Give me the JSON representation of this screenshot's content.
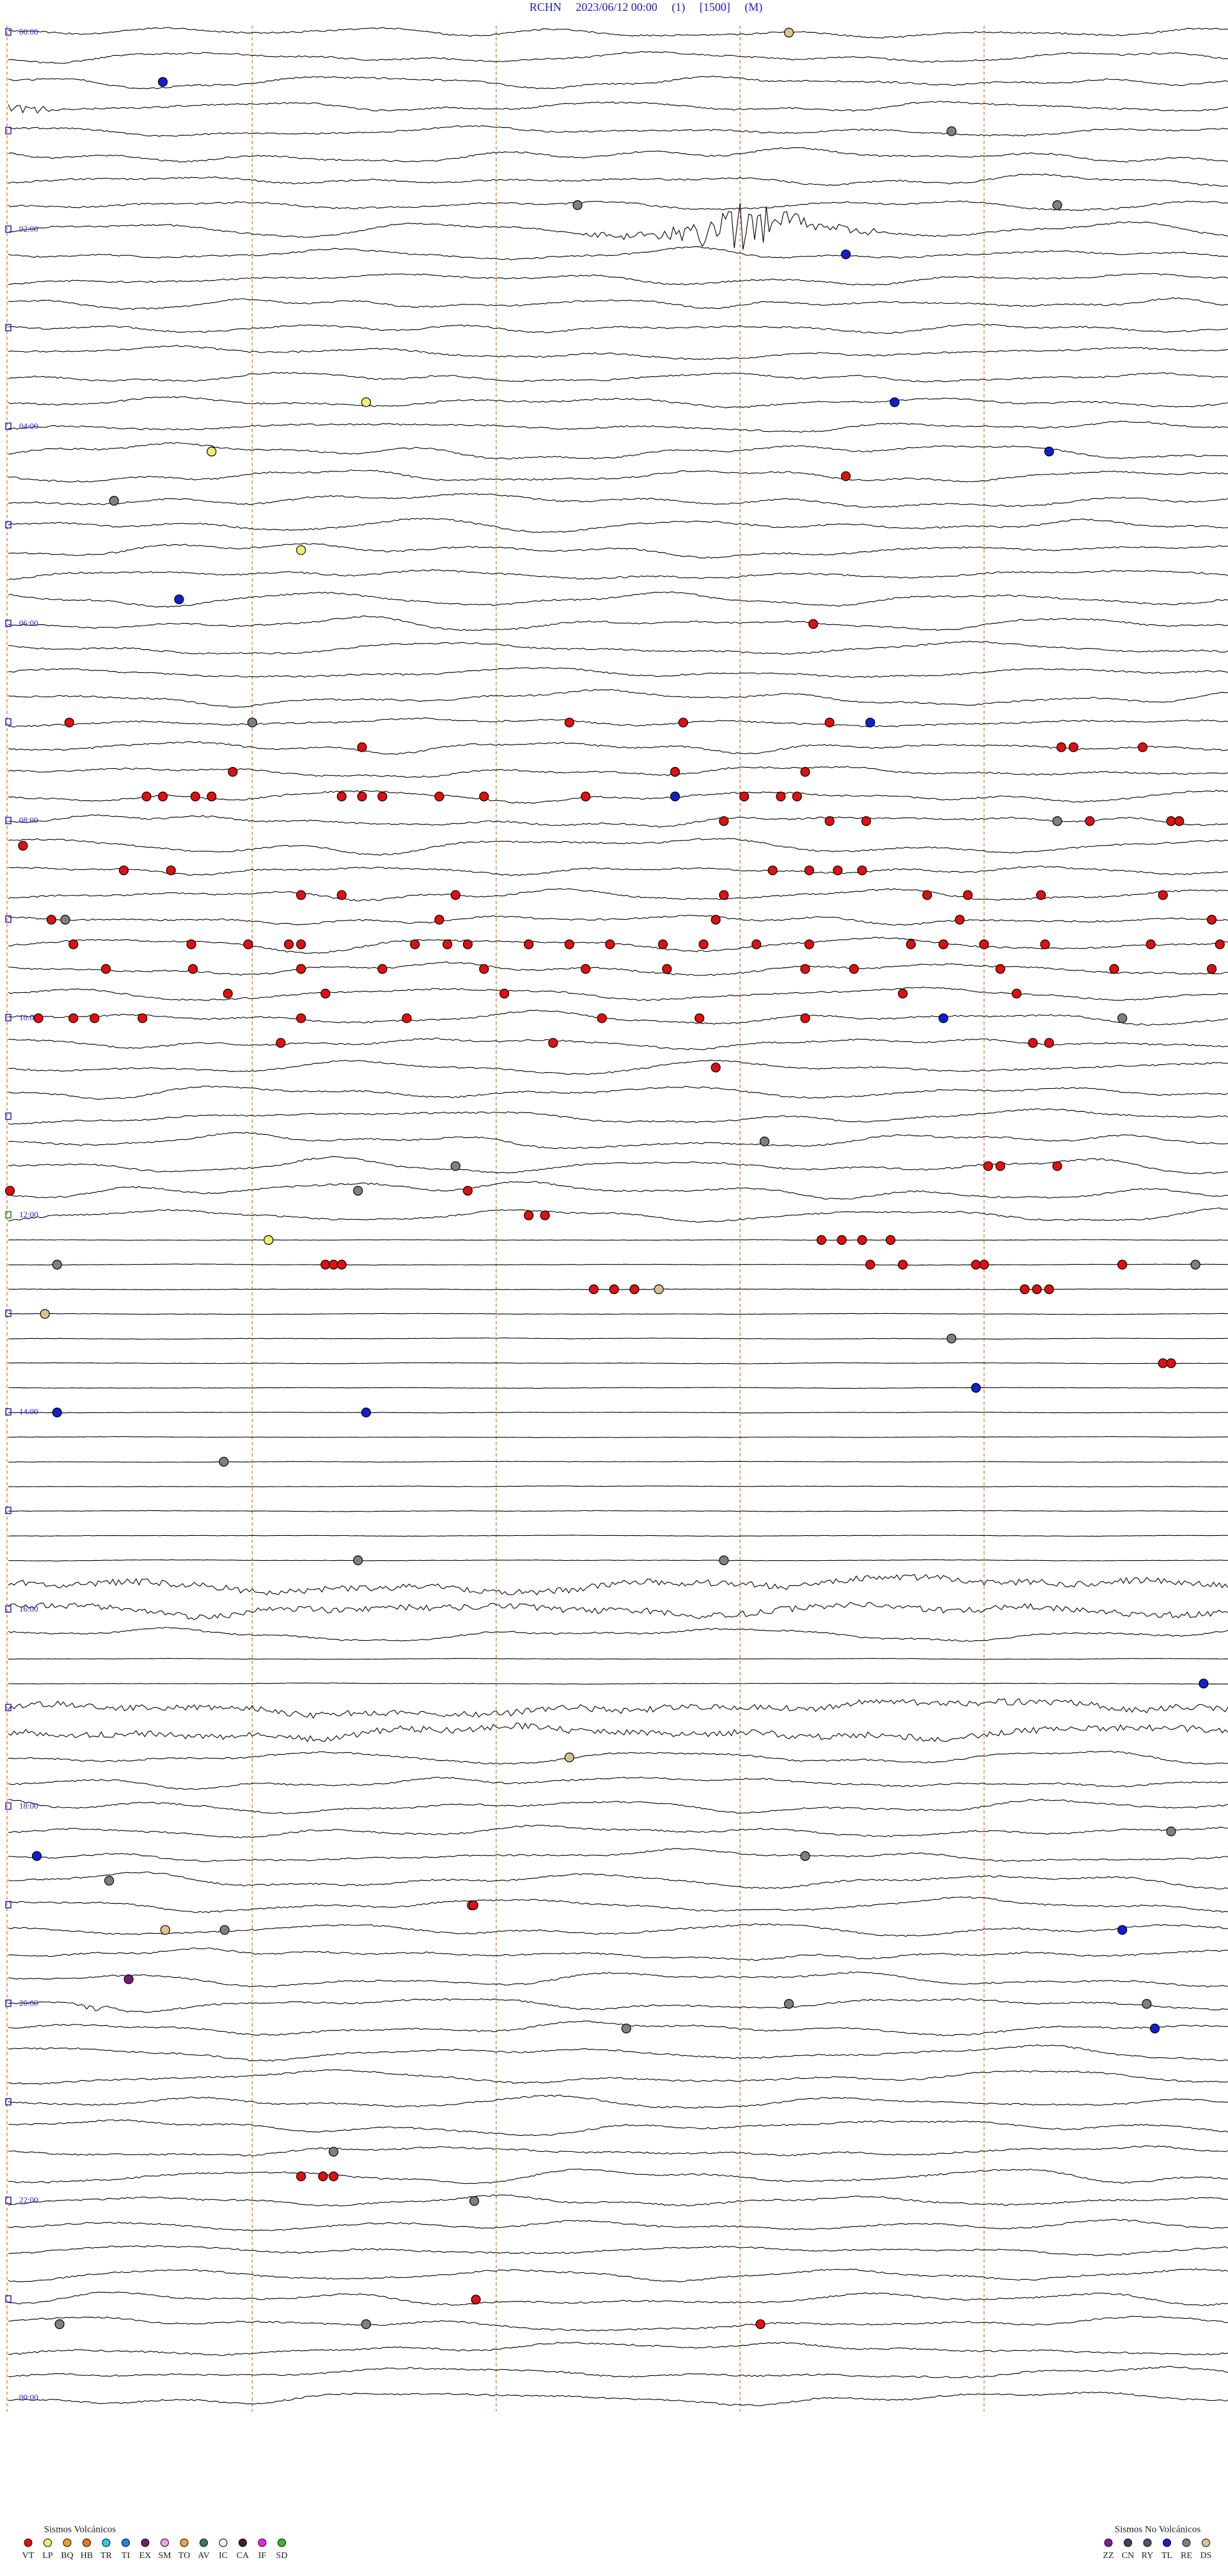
{
  "header": {
    "title": "RCHN     2023/06/12 00:00     (1)     [1500]     (M)"
  },
  "time_labels": [
    "00:00",
    "02:00",
    "04:00",
    "06:00",
    "08:00",
    "10:00",
    "12:00",
    "14:00",
    "16:00",
    "18:00",
    "20:00",
    "22:00",
    "00:00"
  ],
  "events": [
    {
      "row": 0,
      "minute": 9.6,
      "type": "DS"
    },
    {
      "row": 2,
      "minute": 1.9,
      "type": "TL"
    },
    {
      "row": 4,
      "minute": 11.6,
      "type": "RE"
    },
    {
      "row": 7,
      "minute": 12.9,
      "type": "RE"
    },
    {
      "row": 7,
      "minute": 7.0,
      "type": "RE"
    },
    {
      "row": 9,
      "minute": 10.3,
      "type": "TL"
    },
    {
      "row": 15,
      "minute": 10.9,
      "type": "TL"
    },
    {
      "row": 15,
      "minute": 4.4,
      "type": "LP"
    },
    {
      "row": 17,
      "minute": 12.8,
      "type": "TL"
    },
    {
      "row": 17,
      "minute": 2.5,
      "type": "LP"
    },
    {
      "row": 18,
      "minute": 10.3,
      "type": "VT"
    },
    {
      "row": 19,
      "minute": 1.3,
      "type": "RE"
    },
    {
      "row": 21,
      "minute": 3.6,
      "type": "LP"
    },
    {
      "row": 23,
      "minute": 2.1,
      "type": "TL"
    },
    {
      "row": 24,
      "minute": 9.9,
      "type": "VT"
    },
    {
      "row": 28,
      "minute": 3.0,
      "type": "RE"
    },
    {
      "row": 28,
      "minute": 0.75,
      "type": "VT"
    },
    {
      "row": 28,
      "minute": 6.9,
      "type": "VT"
    },
    {
      "row": 28,
      "minute": 8.3,
      "type": "VT"
    },
    {
      "row": 28,
      "minute": 10.1,
      "type": "VT"
    },
    {
      "row": 28,
      "minute": 10.6,
      "type": "TL"
    },
    {
      "row": 29,
      "minute": 12.95,
      "type": "VT"
    },
    {
      "row": 29,
      "minute": 13.1,
      "type": "VT"
    },
    {
      "row": 29,
      "minute": 13.95,
      "type": "VT"
    },
    {
      "row": 29,
      "minute": 4.35,
      "type": "VT"
    },
    {
      "row": 30,
      "minute": 2.76,
      "type": "VT"
    },
    {
      "row": 30,
      "minute": 8.2,
      "type": "VT"
    },
    {
      "row": 31,
      "minute": 8.2,
      "type": "TL"
    },
    {
      "row": 30,
      "minute": 9.8,
      "type": "VT"
    },
    {
      "row": 31,
      "minute": 9.5,
      "type": "VT"
    },
    {
      "row": 31,
      "minute": 9.05,
      "type": "VT"
    },
    {
      "row": 31,
      "minute": 1.7,
      "type": "VT"
    },
    {
      "row": 31,
      "minute": 1.9,
      "type": "VT"
    },
    {
      "row": 31,
      "minute": 2.3,
      "type": "VT"
    },
    {
      "row": 31,
      "minute": 2.5,
      "type": "VT"
    },
    {
      "row": 31,
      "minute": 4.1,
      "type": "VT"
    },
    {
      "row": 31,
      "minute": 4.35,
      "type": "VT"
    },
    {
      "row": 31,
      "minute": 4.6,
      "type": "VT"
    },
    {
      "row": 31,
      "minute": 5.3,
      "type": "VT"
    },
    {
      "row": 31,
      "minute": 5.85,
      "type": "VT"
    },
    {
      "row": 31,
      "minute": 7.1,
      "type": "VT"
    },
    {
      "row": 32,
      "minute": 8.8,
      "type": "VT"
    },
    {
      "row": 31,
      "minute": 9.7,
      "type": "VT"
    },
    {
      "row": 32,
      "minute": 10.1,
      "type": "VT"
    },
    {
      "row": 32,
      "minute": 10.55,
      "type": "VT"
    },
    {
      "row": 32,
      "minute": 13.3,
      "type": "VT"
    },
    {
      "row": 32,
      "minute": 14.3,
      "type": "VT"
    },
    {
      "row": 32,
      "minute": 14.4,
      "type": "VT"
    },
    {
      "row": 32,
      "minute": 12.9,
      "type": "RE"
    },
    {
      "row": 33,
      "minute": 0.18,
      "type": "VT"
    },
    {
      "row": 34,
      "minute": 1.42,
      "type": "VT"
    },
    {
      "row": 34,
      "minute": 2.0,
      "type": "VT"
    },
    {
      "row": 34,
      "minute": 9.4,
      "type": "VT"
    },
    {
      "row": 34,
      "minute": 9.85,
      "type": "VT"
    },
    {
      "row": 34,
      "minute": 10.2,
      "type": "VT"
    },
    {
      "row": 34,
      "minute": 10.5,
      "type": "VT"
    },
    {
      "row": 35,
      "minute": 3.6,
      "type": "VT"
    },
    {
      "row": 35,
      "minute": 4.1,
      "type": "VT"
    },
    {
      "row": 35,
      "minute": 5.5,
      "type": "VT"
    },
    {
      "row": 35,
      "minute": 8.8,
      "type": "VT"
    },
    {
      "row": 35,
      "minute": 11.3,
      "type": "VT"
    },
    {
      "row": 35,
      "minute": 11.8,
      "type": "VT"
    },
    {
      "row": 35,
      "minute": 12.7,
      "type": "VT"
    },
    {
      "row": 35,
      "minute": 14.2,
      "type": "VT"
    },
    {
      "row": 36,
      "minute": 0.53,
      "type": "VT"
    },
    {
      "row": 36,
      "minute": 0.7,
      "type": "RE"
    },
    {
      "row": 36,
      "minute": 5.3,
      "type": "VT"
    },
    {
      "row": 36,
      "minute": 8.7,
      "type": "VT"
    },
    {
      "row": 36,
      "minute": 11.7,
      "type": "VT"
    },
    {
      "row": 36,
      "minute": 14.8,
      "type": "VT"
    },
    {
      "row": 37,
      "minute": 0.8,
      "type": "VT"
    },
    {
      "row": 37,
      "minute": 2.25,
      "type": "VT"
    },
    {
      "row": 37,
      "minute": 2.95,
      "type": "VT"
    },
    {
      "row": 37,
      "minute": 3.45,
      "type": "VT"
    },
    {
      "row": 37,
      "minute": 3.6,
      "type": "VT"
    },
    {
      "row": 37,
      "minute": 5.0,
      "type": "VT"
    },
    {
      "row": 37,
      "minute": 5.4,
      "type": "VT"
    },
    {
      "row": 37,
      "minute": 5.65,
      "type": "VT"
    },
    {
      "row": 37,
      "minute": 6.4,
      "type": "VT"
    },
    {
      "row": 37,
      "minute": 6.9,
      "type": "VT"
    },
    {
      "row": 37,
      "minute": 7.4,
      "type": "VT"
    },
    {
      "row": 37,
      "minute": 8.05,
      "type": "VT"
    },
    {
      "row": 37,
      "minute": 8.55,
      "type": "VT"
    },
    {
      "row": 37,
      "minute": 9.2,
      "type": "VT"
    },
    {
      "row": 37,
      "minute": 9.85,
      "type": "VT"
    },
    {
      "row": 37,
      "minute": 11.1,
      "type": "VT"
    },
    {
      "row": 37,
      "minute": 11.5,
      "type": "VT"
    },
    {
      "row": 37,
      "minute": 12.0,
      "type": "VT"
    },
    {
      "row": 37,
      "minute": 12.75,
      "type": "VT"
    },
    {
      "row": 37,
      "minute": 14.05,
      "type": "VT"
    },
    {
      "row": 37,
      "minute": 14.9,
      "type": "VT"
    },
    {
      "row": 38,
      "minute": 1.2,
      "type": "VT"
    },
    {
      "row": 38,
      "minute": 2.27,
      "type": "VT"
    },
    {
      "row": 38,
      "minute": 3.6,
      "type": "VT"
    },
    {
      "row": 38,
      "minute": 4.6,
      "type": "VT"
    },
    {
      "row": 38,
      "minute": 5.85,
      "type": "VT"
    },
    {
      "row": 38,
      "minute": 7.1,
      "type": "VT"
    },
    {
      "row": 38,
      "minute": 8.1,
      "type": "VT"
    },
    {
      "row": 38,
      "minute": 9.8,
      "type": "VT"
    },
    {
      "row": 38,
      "minute": 10.4,
      "type": "VT"
    },
    {
      "row": 39,
      "minute": 11.0,
      "type": "VT"
    },
    {
      "row": 38,
      "minute": 12.2,
      "type": "VT"
    },
    {
      "row": 38,
      "minute": 13.6,
      "type": "VT"
    },
    {
      "row": 38,
      "minute": 14.8,
      "type": "VT"
    },
    {
      "row": 39,
      "minute": 2.7,
      "type": "VT"
    },
    {
      "row": 39,
      "minute": 3.9,
      "type": "VT"
    },
    {
      "row": 39,
      "minute": 6.1,
      "type": "VT"
    },
    {
      "row": 39,
      "minute": 12.4,
      "type": "VT"
    },
    {
      "row": 40,
      "minute": 0.37,
      "type": "VT"
    },
    {
      "row": 40,
      "minute": 0.8,
      "type": "VT"
    },
    {
      "row": 40,
      "minute": 1.06,
      "type": "VT"
    },
    {
      "row": 40,
      "minute": 1.65,
      "type": "VT"
    },
    {
      "row": 40,
      "minute": 3.6,
      "type": "VT"
    },
    {
      "row": 40,
      "minute": 4.9,
      "type": "VT"
    },
    {
      "row": 40,
      "minute": 7.3,
      "type": "VT"
    },
    {
      "row": 40,
      "minute": 8.5,
      "type": "VT"
    },
    {
      "row": 40,
      "minute": 9.8,
      "type": "VT"
    },
    {
      "row": 40,
      "minute": 11.5,
      "type": "TL"
    },
    {
      "row": 40,
      "minute": 13.7,
      "type": "RE"
    },
    {
      "row": 41,
      "minute": 6.7,
      "type": "VT"
    },
    {
      "row": 41,
      "minute": 3.35,
      "type": "VT"
    },
    {
      "row": 41,
      "minute": 12.6,
      "type": "VT"
    },
    {
      "row": 41,
      "minute": 12.8,
      "type": "VT"
    },
    {
      "row": 42,
      "minute": 8.7,
      "type": "VT"
    },
    {
      "row": 45,
      "minute": 9.3,
      "type": "RE"
    },
    {
      "row": 46,
      "minute": 5.5,
      "type": "RE"
    },
    {
      "row": 46,
      "minute": 12.05,
      "type": "VT"
    },
    {
      "row": 46,
      "minute": 12.2,
      "type": "VT"
    },
    {
      "row": 46,
      "minute": 12.9,
      "type": "VT"
    },
    {
      "row": 47,
      "minute": 0.02,
      "type": "VT"
    },
    {
      "row": 47,
      "minute": 4.3,
      "type": "RE"
    },
    {
      "row": 47,
      "minute": 5.65,
      "type": "VT"
    },
    {
      "row": 48,
      "minute": 6.4,
      "type": "VT"
    },
    {
      "row": 48,
      "minute": 6.6,
      "type": "VT"
    },
    {
      "row": 49,
      "minute": 3.2,
      "type": "LP"
    },
    {
      "row": 49,
      "minute": 10.0,
      "type": "VT"
    },
    {
      "row": 49,
      "minute": 10.25,
      "type": "VT"
    },
    {
      "row": 49,
      "minute": 10.5,
      "type": "VT"
    },
    {
      "row": 49,
      "minute": 10.85,
      "type": "VT"
    },
    {
      "row": 50,
      "minute": 0.6,
      "type": "RE"
    },
    {
      "row": 50,
      "minute": 3.9,
      "type": "VT"
    },
    {
      "row": 50,
      "minute": 4.0,
      "type": "VT"
    },
    {
      "row": 50,
      "minute": 4.1,
      "type": "VT"
    },
    {
      "row": 50,
      "minute": 10.6,
      "type": "VT"
    },
    {
      "row": 50,
      "minute": 11.0,
      "type": "VT"
    },
    {
      "row": 50,
      "minute": 11.9,
      "type": "VT"
    },
    {
      "row": 50,
      "minute": 12.0,
      "type": "VT"
    },
    {
      "row": 50,
      "minute": 13.7,
      "type": "VT"
    },
    {
      "row": 50,
      "minute": 14.6,
      "type": "RE"
    },
    {
      "row": 51,
      "minute": 7.2,
      "type": "VT"
    },
    {
      "row": 51,
      "minute": 7.45,
      "type": "VT"
    },
    {
      "row": 51,
      "minute": 7.7,
      "type": "VT"
    },
    {
      "row": 51,
      "minute": 8.0,
      "type": "DS"
    },
    {
      "row": 51,
      "minute": 12.5,
      "type": "VT"
    },
    {
      "row": 51,
      "minute": 12.65,
      "type": "VT"
    },
    {
      "row": 51,
      "minute": 12.8,
      "type": "VT"
    },
    {
      "row": 52,
      "minute": 0.45,
      "type": "DS"
    },
    {
      "row": 53,
      "minute": 11.6,
      "type": "RE"
    },
    {
      "row": 54,
      "minute": 14.2,
      "type": "VT"
    },
    {
      "row": 54,
      "minute": 14.3,
      "type": "VT"
    },
    {
      "row": 56,
      "minute": 0.6,
      "type": "TL"
    },
    {
      "row": 55,
      "minute": 11.9,
      "type": "TL"
    },
    {
      "row": 56,
      "minute": 4.4,
      "type": "TL"
    },
    {
      "row": 58,
      "minute": 2.65,
      "type": "RE"
    },
    {
      "row": 62,
      "minute": 8.8,
      "type": "RE"
    },
    {
      "row": 62,
      "minute": 4.3,
      "type": "RE"
    },
    {
      "row": 67,
      "minute": 14.7,
      "type": "TL"
    },
    {
      "row": 70,
      "minute": 6.9,
      "type": "DS"
    },
    {
      "row": 73,
      "minute": 14.3,
      "type": "RE"
    },
    {
      "row": 74,
      "minute": 0.35,
      "type": "TL"
    },
    {
      "row": 75,
      "minute": 1.24,
      "type": "RE"
    },
    {
      "row": 74,
      "minute": 9.8,
      "type": "RE"
    },
    {
      "row": 76,
      "minute": 5.7,
      "type": "RE"
    },
    {
      "row": 76,
      "minute": 5.72,
      "type": "VT"
    },
    {
      "row": 77,
      "minute": 1.93,
      "type": "DS"
    },
    {
      "row": 77,
      "minute": 2.66,
      "type": "RE"
    },
    {
      "row": 77,
      "minute": 13.7,
      "type": "TL"
    },
    {
      "row": 79,
      "minute": 1.48,
      "type": "EX"
    },
    {
      "row": 80,
      "minute": 9.6,
      "type": "RE"
    },
    {
      "row": 80,
      "minute": 14.0,
      "type": "RE"
    },
    {
      "row": 81,
      "minute": 7.6,
      "type": "RE"
    },
    {
      "row": 81,
      "minute": 14.1,
      "type": "TL"
    },
    {
      "row": 86,
      "minute": 4.0,
      "type": "RE"
    },
    {
      "row": 87,
      "minute": 3.6,
      "type": "VT"
    },
    {
      "row": 87,
      "minute": 3.87,
      "type": "VT"
    },
    {
      "row": 87,
      "minute": 4.0,
      "type": "VT"
    },
    {
      "row": 88,
      "minute": 5.73,
      "type": "RE"
    },
    {
      "row": 92,
      "minute": 5.75,
      "type": "VT"
    },
    {
      "row": 93,
      "minute": 0.63,
      "type": "RE"
    },
    {
      "row": 93,
      "minute": 9.25,
      "type": "VT"
    },
    {
      "row": 93,
      "minute": 4.4,
      "type": "RE"
    }
  ],
  "legend": {
    "volcanic": {
      "title": "Sismos Volcánicos",
      "items": [
        {
          "code": "VT",
          "color": "#e01010"
        },
        {
          "code": "LP",
          "color": "#f0f070"
        },
        {
          "code": "BQ",
          "color": "#f0a020"
        },
        {
          "code": "HB",
          "color": "#f07020"
        },
        {
          "code": "TR",
          "color": "#20d0f0"
        },
        {
          "code": "TI",
          "color": "#2080f0"
        },
        {
          "code": "EX",
          "color": "#702070"
        },
        {
          "code": "SM",
          "color": "#f0a0f0"
        },
        {
          "code": "TO",
          "color": "#f0a040"
        },
        {
          "code": "AV",
          "color": "#308060"
        },
        {
          "code": "IC",
          "color": "#f0f0f0"
        },
        {
          "code": "CA",
          "color": "#402040"
        },
        {
          "code": "IF",
          "color": "#f020f0"
        },
        {
          "code": "SD",
          "color": "#30c030"
        }
      ]
    },
    "non_volcanic": {
      "title": "Sismos No Volcánicos",
      "items": [
        {
          "code": "ZZ",
          "color": "#8020a0"
        },
        {
          "code": "CN",
          "color": "#404060"
        },
        {
          "code": "RY",
          "color": "#505070"
        },
        {
          "code": "TL",
          "color": "#1020d0"
        },
        {
          "code": "RE",
          "color": "#808080"
        },
        {
          "code": "DS",
          "color": "#e0c090"
        }
      ]
    }
  }
}
